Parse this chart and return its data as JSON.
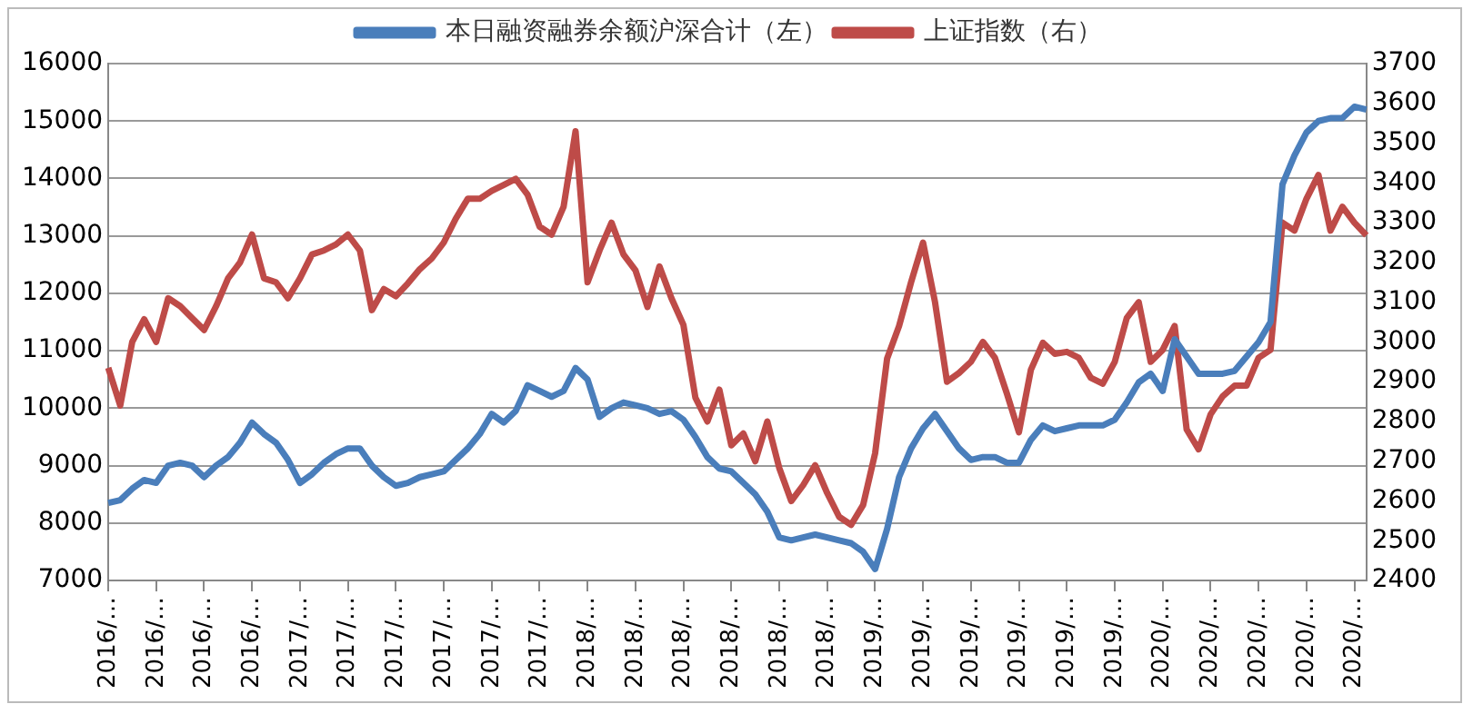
{
  "chart_data": {
    "type": "line",
    "categories": [
      "2016/…",
      null,
      null,
      null,
      "2016/…",
      null,
      null,
      null,
      "2016/…",
      null,
      null,
      null,
      "2016/…",
      null,
      null,
      null,
      "2017/…",
      null,
      null,
      null,
      "2017/…",
      null,
      null,
      null,
      "2017/…",
      null,
      null,
      null,
      "2017/…",
      null,
      null,
      null,
      "2017/…",
      null,
      null,
      null,
      "2017/…",
      null,
      null,
      null,
      "2018/…",
      null,
      null,
      null,
      "2018/…",
      null,
      null,
      null,
      "2018/…",
      null,
      null,
      null,
      "2018/…",
      null,
      null,
      null,
      "2018/…",
      null,
      null,
      null,
      "2018/…",
      null,
      null,
      null,
      "2019/…",
      null,
      null,
      null,
      "2019/…",
      null,
      null,
      null,
      "2019/…",
      null,
      null,
      null,
      "2019/…",
      null,
      null,
      null,
      "2019/…",
      null,
      null,
      null,
      "2019/…",
      null,
      null,
      null,
      "2020/…",
      null,
      null,
      null,
      "2020/…",
      null,
      null,
      null,
      "2020/…",
      null,
      null,
      null,
      "2020/…",
      null,
      null,
      null,
      "2020/…",
      null
    ],
    "series": [
      {
        "name": "本日融资融券余额沪深合计（左）",
        "color": "#4a7ebb",
        "values": [
          8350,
          8400,
          8600,
          8750,
          8700,
          9000,
          9050,
          9000,
          8800,
          9000,
          9150,
          9400,
          9750,
          9550,
          9400,
          9100,
          8700,
          8850,
          9050,
          9200,
          9300,
          9300,
          9000,
          8800,
          8650,
          8700,
          8800,
          8850,
          8900,
          9100,
          9300,
          9550,
          9900,
          9750,
          9950,
          10400,
          10300,
          10200,
          10300,
          10700,
          10500,
          9850,
          10000,
          10100,
          10050,
          10000,
          9900,
          9950,
          9800,
          9500,
          9150,
          8950,
          8900,
          8700,
          8500,
          8200,
          7750,
          7700,
          7750,
          7800,
          7750,
          7700,
          7650,
          7500,
          7200,
          7900,
          8800,
          9300,
          9650,
          9900,
          9600,
          9300,
          9100,
          9150,
          9150,
          9050,
          9050,
          9450,
          9700,
          9600,
          9650,
          9700,
          9700,
          9700,
          9800,
          10100,
          10450,
          10600,
          10300,
          11200,
          10900,
          10600,
          10600,
          10600,
          10650,
          10900,
          11150,
          11500,
          13900,
          14400,
          14800,
          15000,
          15050,
          15050,
          15250,
          15200
        ]
      },
      {
        "name": "上证指数（右）",
        "color": "#be4b48",
        "axis": "y2",
        "values": [
          2935,
          2840,
          3000,
          3057,
          3000,
          3110,
          3090,
          3060,
          3030,
          3090,
          3160,
          3200,
          3270,
          3160,
          3150,
          3110,
          3160,
          3220,
          3230,
          3245,
          3270,
          3230,
          3080,
          3133,
          3115,
          3147,
          3183,
          3210,
          3250,
          3310,
          3360,
          3360,
          3380,
          3395,
          3410,
          3370,
          3290,
          3270,
          3340,
          3530,
          3150,
          3230,
          3300,
          3220,
          3180,
          3088,
          3190,
          3110,
          3043,
          2860,
          2800,
          2880,
          2740,
          2770,
          2700,
          2800,
          2683,
          2600,
          2640,
          2690,
          2620,
          2560,
          2540,
          2590,
          2720,
          2958,
          3040,
          3150,
          3250,
          3100,
          2900,
          2922,
          2950,
          3000,
          2960,
          2870,
          2773,
          2930,
          2998,
          2970,
          2975,
          2960,
          2910,
          2895,
          2950,
          3060,
          3100,
          2950,
          2980,
          3040,
          2780,
          2730,
          2818,
          2863,
          2890,
          2890,
          2960,
          2980,
          3300,
          3280,
          3360,
          3420,
          3280,
          3340,
          3300,
          3268
        ]
      }
    ],
    "ylim": [
      7000,
      16000
    ],
    "yticks": [
      7000,
      8000,
      9000,
      10000,
      11000,
      12000,
      13000,
      14000,
      15000,
      16000
    ],
    "y2lim": [
      2400,
      3700
    ],
    "y2ticks": [
      2400,
      2500,
      2600,
      2700,
      2800,
      2900,
      3000,
      3100,
      3200,
      3300,
      3400,
      3500,
      3600,
      3700
    ],
    "grid": "y",
    "legend": "top",
    "marker": "none",
    "line_style": "solid"
  }
}
